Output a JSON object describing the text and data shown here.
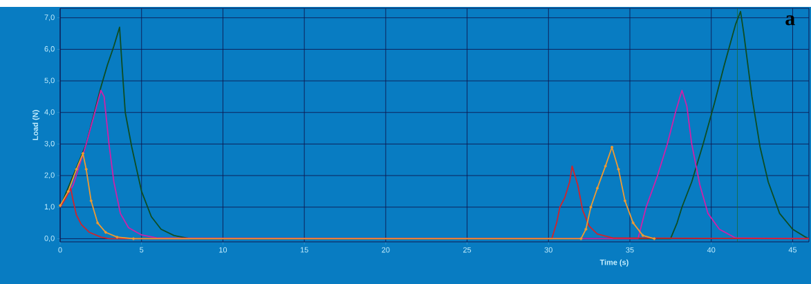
{
  "chart_data": {
    "type": "line",
    "xlabel": "Time (s)",
    "ylabel": "Load (N)",
    "xlim": [
      0,
      46
    ],
    "ylim": [
      -0.1,
      7.3
    ],
    "xticks": [
      0,
      5,
      10,
      15,
      20,
      25,
      30,
      35,
      40,
      45
    ],
    "yticks": [
      {
        "value": 0,
        "label": "0,0"
      },
      {
        "value": 1,
        "label": "1,0"
      },
      {
        "value": 2,
        "label": "2,0"
      },
      {
        "value": 3,
        "label": "3,0"
      },
      {
        "value": 4,
        "label": "4,0"
      },
      {
        "value": 5,
        "label": "5,0"
      },
      {
        "value": 6,
        "label": "6,0"
      },
      {
        "value": 7,
        "label": "7,0"
      }
    ],
    "grid": true,
    "line_style": "solid",
    "series": [
      {
        "color": "#0e4d22",
        "marker": "none",
        "x": [
          0,
          1.6,
          2.5,
          2.9,
          3.3,
          3.65,
          3.8,
          4.0,
          4.4,
          5.0,
          5.6,
          6.2,
          7.0,
          8.0,
          37.5,
          37.9,
          38.2,
          38.8,
          39.5,
          40.2,
          40.8,
          41.5,
          41.8,
          42.0,
          42.5,
          43.0,
          43.5,
          44.2,
          45.0,
          45.8,
          46.0
        ],
        "values": [
          1.0,
          3.0,
          4.8,
          5.5,
          6.1,
          6.7,
          5.5,
          4.0,
          2.9,
          1.5,
          0.7,
          0.3,
          0.1,
          0,
          0,
          0.5,
          1.0,
          1.8,
          3.0,
          4.3,
          5.5,
          6.8,
          7.2,
          6.5,
          4.5,
          2.9,
          1.8,
          0.8,
          0.3,
          0.05,
          0
        ]
      },
      {
        "color": "#d020a8",
        "marker": "none",
        "x": [
          0,
          0.8,
          1.6,
          2.5,
          2.7,
          3.0,
          3.3,
          3.7,
          4.2,
          5.0,
          6.0,
          35.5,
          35.8,
          36.0,
          36.7,
          37.3,
          37.8,
          38.2,
          38.5,
          38.8,
          39.3,
          39.8,
          40.5,
          41.5,
          46.0
        ],
        "values": [
          1.0,
          1.7,
          3.0,
          4.7,
          4.5,
          3.0,
          1.8,
          0.8,
          0.35,
          0.12,
          0.02,
          0,
          0.6,
          1.0,
          2.0,
          3.0,
          4.0,
          4.7,
          4.2,
          3.0,
          1.7,
          0.8,
          0.3,
          0.02,
          0
        ]
      },
      {
        "color": "#f09a30",
        "marker": "cross",
        "x": [
          0,
          0.5,
          1.0,
          1.4,
          1.6,
          1.9,
          2.3,
          2.8,
          3.5,
          4.5,
          32.0,
          32.3,
          32.6,
          33.0,
          33.5,
          33.9,
          34.3,
          34.7,
          35.2,
          35.8,
          36.5
        ],
        "values": [
          1.05,
          1.5,
          2.2,
          2.7,
          2.2,
          1.2,
          0.5,
          0.2,
          0.05,
          0,
          0,
          0.3,
          1.0,
          1.6,
          2.3,
          2.9,
          2.2,
          1.2,
          0.5,
          0.1,
          0
        ]
      },
      {
        "color": "#d2232a",
        "marker": "none",
        "x": [
          0,
          0.3,
          0.65,
          0.8,
          1.0,
          1.3,
          1.8,
          2.5,
          3.0,
          30.2,
          30.5,
          30.7,
          31.0,
          31.3,
          31.45,
          31.8,
          32.1,
          32.5,
          33.0,
          34.0,
          46.0
        ],
        "values": [
          1.0,
          1.25,
          1.6,
          1.2,
          0.75,
          0.45,
          0.2,
          0.05,
          0,
          0,
          0.5,
          1.0,
          1.3,
          1.8,
          2.3,
          1.7,
          0.9,
          0.4,
          0.15,
          0.02,
          0
        ]
      }
    ],
    "ref_lines": [
      {
        "axis": "x",
        "value": 41.6,
        "color": "#1a6b2a"
      }
    ],
    "annotations": [
      "a"
    ]
  }
}
